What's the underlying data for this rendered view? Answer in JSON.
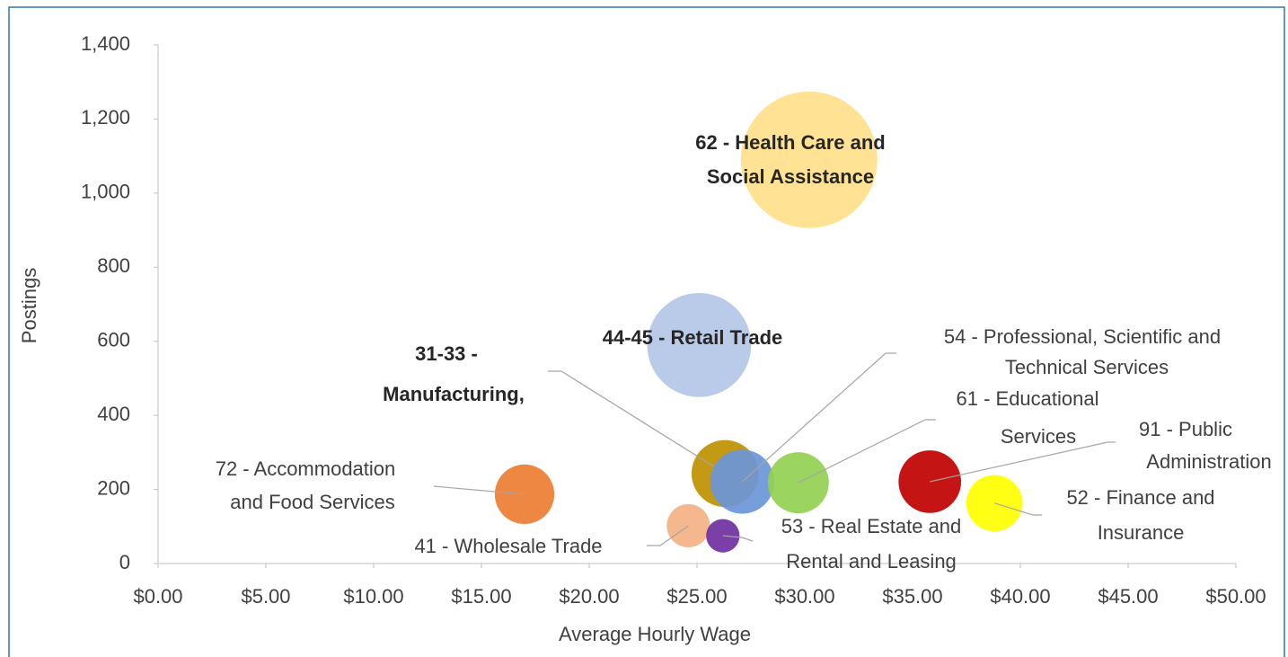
{
  "chart_data": {
    "type": "bubble",
    "xlabel": "Average Hourly Wage",
    "ylabel": "Postings",
    "xlim": [
      0,
      50
    ],
    "xticks": [
      {
        "value": 0,
        "label": "$0.00"
      },
      {
        "value": 5,
        "label": "$5.00"
      },
      {
        "value": 10,
        "label": "$10.00"
      },
      {
        "value": 15,
        "label": "$15.00"
      },
      {
        "value": 20,
        "label": "$20.00"
      },
      {
        "value": 25,
        "label": "$25.00"
      },
      {
        "value": 30,
        "label": "$30.00"
      },
      {
        "value": 35,
        "label": "$35.00"
      },
      {
        "value": 40,
        "label": "$40.00"
      },
      {
        "value": 45,
        "label": "$45.00"
      },
      {
        "value": 50,
        "label": "$50.00"
      }
    ],
    "ylim": [
      0,
      1400
    ],
    "yticks": [
      0,
      200,
      400,
      600,
      800,
      {
        "value": 1000,
        "label": "1,000"
      },
      {
        "value": 1200,
        "label": "1,200"
      },
      {
        "value": 1400,
        "label": "1,400"
      }
    ],
    "series": [
      {
        "name": [
          "62 - Health Care and",
          "Social Assistance"
        ],
        "color": "#ffe08a",
        "bold": true,
        "x": [
          30.2
        ],
        "values": [
          1090
        ],
        "sizes": [
          100
        ]
      },
      {
        "name": [
          "44-45 - Retail Trade"
        ],
        "color": "#b4c7e7",
        "bold": true,
        "x": [
          25.1
        ],
        "values": [
          590
        ],
        "sizes": [
          58
        ]
      },
      {
        "name": [
          "31-33 -",
          "Manufacturing,"
        ],
        "color": "#bf9000",
        "bold": true,
        "x": [
          26.3
        ],
        "values": [
          243
        ],
        "sizes": [
          24
        ]
      },
      {
        "name": [
          "54 - Professional, Scientific and",
          "Technical Services"
        ],
        "color": "#6a96d8",
        "bold": false,
        "x": [
          27.1
        ],
        "values": [
          221
        ],
        "sizes": [
          22
        ]
      },
      {
        "name": [
          "61 - Educational",
          "Services"
        ],
        "color": "#92d050",
        "bold": false,
        "x": [
          29.7
        ],
        "values": [
          218
        ],
        "sizes": [
          20
        ]
      },
      {
        "name": [
          "91 - Public",
          "Administration"
        ],
        "color": "#c00000",
        "bold": false,
        "x": [
          35.8
        ],
        "values": [
          221
        ],
        "sizes": [
          21
        ]
      },
      {
        "name": [
          "52 - Finance and",
          "Insurance"
        ],
        "color": "#ffff00",
        "bold": false,
        "x": [
          38.8
        ],
        "values": [
          163
        ],
        "sizes": [
          17
        ]
      },
      {
        "name": [
          "72 - Accommodation",
          "and Food Services"
        ],
        "color": "#ed7d31",
        "bold": false,
        "x": [
          17.0
        ],
        "values": [
          187
        ],
        "sizes": [
          19
        ]
      },
      {
        "name": [
          "41 - Wholesale Trade"
        ],
        "color": "#f4b183",
        "bold": false,
        "x": [
          24.6
        ],
        "values": [
          102
        ],
        "sizes": [
          10
        ]
      },
      {
        "name": [
          "53 - Real Estate and",
          "Rental and Leasing"
        ],
        "color": "#7030a0",
        "bold": false,
        "x": [
          26.2
        ],
        "values": [
          75
        ],
        "sizes": [
          6
        ]
      }
    ]
  }
}
